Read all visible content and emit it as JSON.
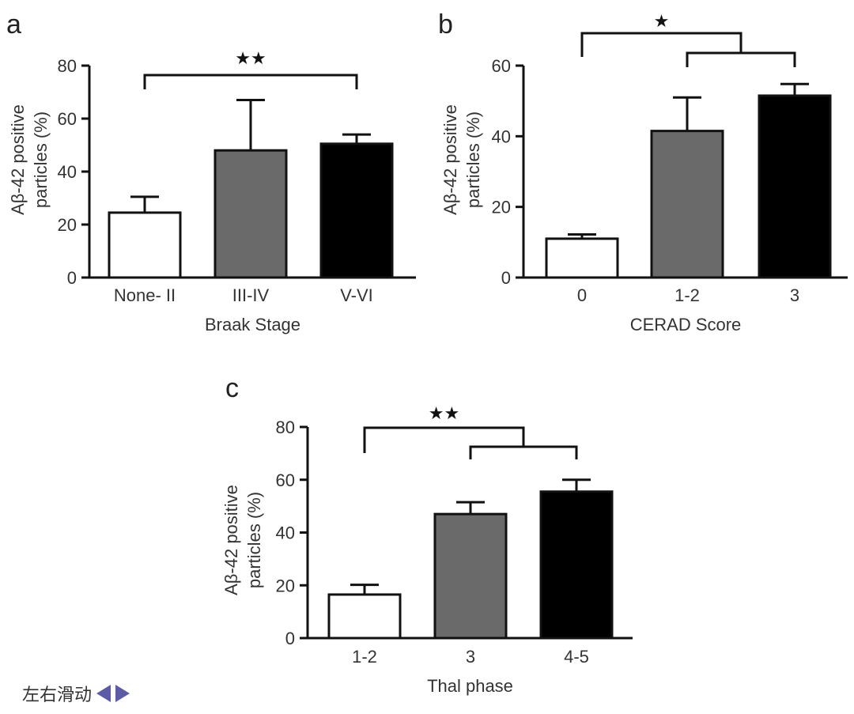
{
  "chart_data": [
    {
      "type": "bar",
      "panel": "a",
      "title": "",
      "xlabel": "Braak Stage",
      "ylabel": "Aβ-42 positive particles (%)",
      "ylabel_lines": [
        "Aβ-42 positive",
        "particles (%)"
      ],
      "ylim": [
        0,
        80
      ],
      "yticks": [
        "0",
        "20",
        "40",
        "60",
        "80"
      ],
      "categories": [
        "None- II",
        "III-IV",
        "V-VI"
      ],
      "values": [
        24.5,
        48,
        50.5
      ],
      "errors": [
        6,
        19,
        3.5
      ],
      "bar_colors": [
        "#ffffff",
        "#6a6a6a",
        "#000000"
      ],
      "significance": [
        {
          "label": "★★",
          "groups": [
            [
              0
            ],
            [
              2
            ]
          ]
        }
      ]
    },
    {
      "type": "bar",
      "panel": "b",
      "title": "",
      "xlabel": "CERAD Score",
      "ylabel": "Aβ-42 positive particles (%)",
      "ylabel_lines": [
        "Aβ-42 positive",
        "particles (%)"
      ],
      "ylim": [
        0,
        60
      ],
      "yticks": [
        "0",
        "20",
        "40",
        "60"
      ],
      "categories": [
        "0",
        "1-2",
        "3"
      ],
      "values": [
        11,
        41.5,
        51.5
      ],
      "errors": [
        1.2,
        9.5,
        3.3
      ],
      "bar_colors": [
        "#ffffff",
        "#6a6a6a",
        "#000000"
      ],
      "significance": [
        {
          "label": "★",
          "groups": [
            [
              0
            ],
            [
              1,
              2
            ]
          ]
        }
      ]
    },
    {
      "type": "bar",
      "panel": "c",
      "title": "",
      "xlabel": "Thal phase",
      "ylabel": "Aβ-42 positive particles (%)",
      "ylabel_lines": [
        "Aβ-42 positive",
        "particles (%)"
      ],
      "ylim": [
        0,
        80
      ],
      "yticks": [
        "0",
        "20",
        "40",
        "60",
        "80"
      ],
      "categories": [
        "1-2",
        "3",
        "4-5"
      ],
      "values": [
        16.5,
        47,
        55.5
      ],
      "errors": [
        3.7,
        4.5,
        4.5
      ],
      "bar_colors": [
        "#ffffff",
        "#6a6a6a",
        "#000000"
      ],
      "significance": [
        {
          "label": "★★",
          "groups": [
            [
              0
            ],
            [
              1,
              2
            ]
          ]
        }
      ]
    }
  ],
  "nav": {
    "label": "左右滑动",
    "prev_icon": "triangle-left-icon",
    "next_icon": "triangle-right-icon",
    "color": "#5b5ba8"
  }
}
